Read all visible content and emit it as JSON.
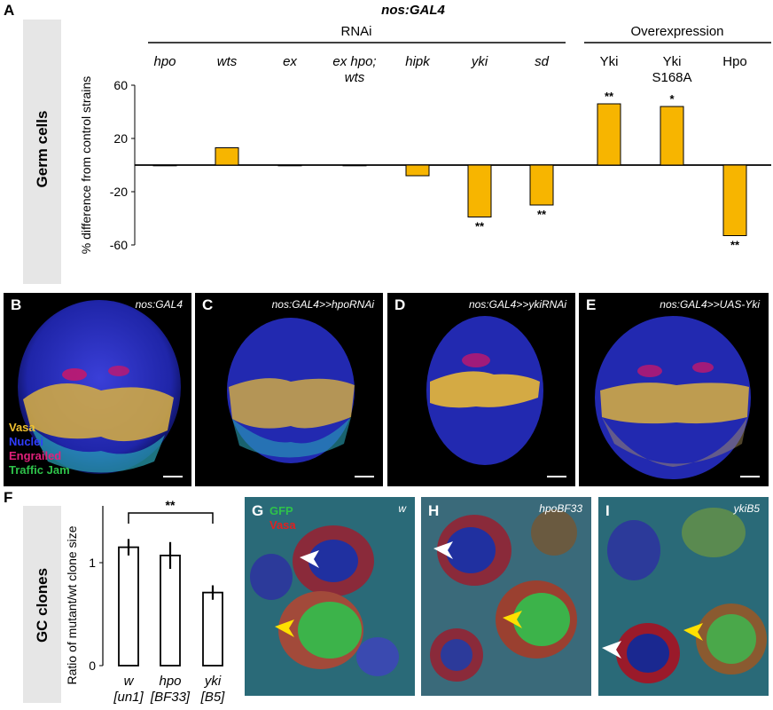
{
  "panel_labels": [
    "A",
    "B",
    "C",
    "D",
    "E",
    "F",
    "G",
    "H",
    "I"
  ],
  "figure_title": "nos:GAL4",
  "panel_a": {
    "side_label": "Germ cells",
    "group_headers": [
      "RNAi",
      "Overexpression"
    ],
    "ylabel": "% difference from control strains",
    "ytick_labels": [
      "60",
      "20",
      "-20",
      "-60"
    ]
  },
  "chart_data": [
    {
      "type": "bar",
      "title": "nos:GAL4",
      "categories": [
        "hpo",
        "wts",
        "ex",
        "ex hpo; wts",
        "hipk",
        "yki",
        "sd",
        "Yki",
        "Yki S168A",
        "Hpo"
      ],
      "italic_categories": [
        "hpo",
        "wts",
        "ex",
        "ex hpo; wts",
        "hipk",
        "yki",
        "sd"
      ],
      "values": [
        0,
        13,
        0,
        0,
        -8,
        -39,
        -30,
        46,
        44,
        -53
      ],
      "significance": [
        "",
        "",
        "",
        "",
        "",
        "**",
        "**",
        "**",
        "*",
        "**"
      ],
      "groups": [
        {
          "name": "RNAi",
          "categories": [
            "hpo",
            "wts",
            "ex",
            "ex hpo; wts",
            "hipk",
            "yki",
            "sd"
          ]
        },
        {
          "name": "Overexpression",
          "categories": [
            "Yki",
            "Yki S168A",
            "Hpo"
          ]
        }
      ],
      "ylabel": "% difference from control strains",
      "yticks": [
        60,
        20,
        -20,
        -60
      ],
      "ylim": [
        -60,
        60
      ],
      "bar_color": "#f7b500"
    },
    {
      "type": "bar",
      "categories": [
        "w [un1]",
        "hpo [BF33]",
        "yki [B5]"
      ],
      "values": [
        1.15,
        1.07,
        0.71
      ],
      "errors": [
        0.08,
        0.13,
        0.07
      ],
      "significance_bracket": {
        "from": "w [un1]",
        "to": "yki [B5]",
        "label": "**"
      },
      "ylabel": "Ratio of mutant/wt clone size",
      "yticks": [
        0,
        1
      ],
      "ylim": [
        0,
        1.6
      ]
    }
  ],
  "micrographs_row1": [
    {
      "letter": "B",
      "caption": "nos:GAL4"
    },
    {
      "letter": "C",
      "caption": "nos:GAL4>>hpoRNAi"
    },
    {
      "letter": "D",
      "caption": "nos:GAL4>>ykiRNAi"
    },
    {
      "letter": "E",
      "caption": "nos:GAL4>>UAS-Yki"
    }
  ],
  "legend_b": [
    {
      "text": "Vasa",
      "color": "#f2c230"
    },
    {
      "text": "Nuclei",
      "color": "#2f3dff"
    },
    {
      "text": "Engrailed",
      "color": "#e0207a"
    },
    {
      "text": "Traffic Jam",
      "color": "#2ec24a"
    }
  ],
  "panel_f": {
    "side_label": "GC clones",
    "ylabel": "Ratio of mutant/wt clone size",
    "xlabels_top": [
      "w",
      "hpo",
      "yki"
    ],
    "xlabels_bottom": [
      "[un1]",
      "[BF33]",
      "[B5]"
    ],
    "ytick_labels": [
      "1",
      "0"
    ],
    "sig": "**"
  },
  "micrographs_row2": [
    {
      "letter": "G",
      "caption": "w"
    },
    {
      "letter": "H",
      "caption": "hpoBF33"
    },
    {
      "letter": "I",
      "caption": "ykiB5"
    }
  ],
  "legend_g": [
    {
      "text": "GFP",
      "color": "#2ec24a"
    },
    {
      "text": "Vasa",
      "color": "#e02020"
    }
  ]
}
